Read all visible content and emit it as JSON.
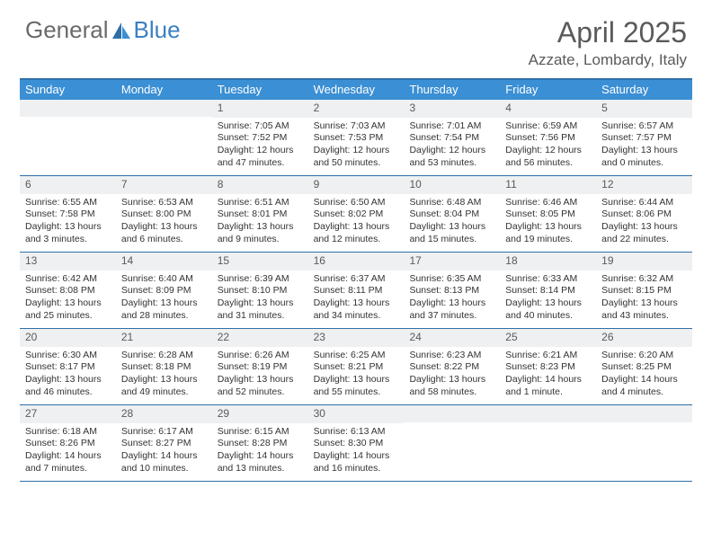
{
  "brand": {
    "part1": "General",
    "part2": "Blue"
  },
  "title": "April 2025",
  "location": "Azzate, Lombardy, Italy",
  "colors": {
    "header_bg": "#3b8fd4",
    "border": "#2f6fa8",
    "daybar_bg": "#eef0f1",
    "text": "#333333",
    "muted": "#5a5a5a",
    "brand_blue": "#3b7fc4"
  },
  "weekdays": [
    "Sunday",
    "Monday",
    "Tuesday",
    "Wednesday",
    "Thursday",
    "Friday",
    "Saturday"
  ],
  "weeks": [
    [
      {
        "n": "",
        "sunrise": "",
        "sunset": "",
        "daylight": ""
      },
      {
        "n": "",
        "sunrise": "",
        "sunset": "",
        "daylight": ""
      },
      {
        "n": "1",
        "sunrise": "Sunrise: 7:05 AM",
        "sunset": "Sunset: 7:52 PM",
        "daylight": "Daylight: 12 hours and 47 minutes."
      },
      {
        "n": "2",
        "sunrise": "Sunrise: 7:03 AM",
        "sunset": "Sunset: 7:53 PM",
        "daylight": "Daylight: 12 hours and 50 minutes."
      },
      {
        "n": "3",
        "sunrise": "Sunrise: 7:01 AM",
        "sunset": "Sunset: 7:54 PM",
        "daylight": "Daylight: 12 hours and 53 minutes."
      },
      {
        "n": "4",
        "sunrise": "Sunrise: 6:59 AM",
        "sunset": "Sunset: 7:56 PM",
        "daylight": "Daylight: 12 hours and 56 minutes."
      },
      {
        "n": "5",
        "sunrise": "Sunrise: 6:57 AM",
        "sunset": "Sunset: 7:57 PM",
        "daylight": "Daylight: 13 hours and 0 minutes."
      }
    ],
    [
      {
        "n": "6",
        "sunrise": "Sunrise: 6:55 AM",
        "sunset": "Sunset: 7:58 PM",
        "daylight": "Daylight: 13 hours and 3 minutes."
      },
      {
        "n": "7",
        "sunrise": "Sunrise: 6:53 AM",
        "sunset": "Sunset: 8:00 PM",
        "daylight": "Daylight: 13 hours and 6 minutes."
      },
      {
        "n": "8",
        "sunrise": "Sunrise: 6:51 AM",
        "sunset": "Sunset: 8:01 PM",
        "daylight": "Daylight: 13 hours and 9 minutes."
      },
      {
        "n": "9",
        "sunrise": "Sunrise: 6:50 AM",
        "sunset": "Sunset: 8:02 PM",
        "daylight": "Daylight: 13 hours and 12 minutes."
      },
      {
        "n": "10",
        "sunrise": "Sunrise: 6:48 AM",
        "sunset": "Sunset: 8:04 PM",
        "daylight": "Daylight: 13 hours and 15 minutes."
      },
      {
        "n": "11",
        "sunrise": "Sunrise: 6:46 AM",
        "sunset": "Sunset: 8:05 PM",
        "daylight": "Daylight: 13 hours and 19 minutes."
      },
      {
        "n": "12",
        "sunrise": "Sunrise: 6:44 AM",
        "sunset": "Sunset: 8:06 PM",
        "daylight": "Daylight: 13 hours and 22 minutes."
      }
    ],
    [
      {
        "n": "13",
        "sunrise": "Sunrise: 6:42 AM",
        "sunset": "Sunset: 8:08 PM",
        "daylight": "Daylight: 13 hours and 25 minutes."
      },
      {
        "n": "14",
        "sunrise": "Sunrise: 6:40 AM",
        "sunset": "Sunset: 8:09 PM",
        "daylight": "Daylight: 13 hours and 28 minutes."
      },
      {
        "n": "15",
        "sunrise": "Sunrise: 6:39 AM",
        "sunset": "Sunset: 8:10 PM",
        "daylight": "Daylight: 13 hours and 31 minutes."
      },
      {
        "n": "16",
        "sunrise": "Sunrise: 6:37 AM",
        "sunset": "Sunset: 8:11 PM",
        "daylight": "Daylight: 13 hours and 34 minutes."
      },
      {
        "n": "17",
        "sunrise": "Sunrise: 6:35 AM",
        "sunset": "Sunset: 8:13 PM",
        "daylight": "Daylight: 13 hours and 37 minutes."
      },
      {
        "n": "18",
        "sunrise": "Sunrise: 6:33 AM",
        "sunset": "Sunset: 8:14 PM",
        "daylight": "Daylight: 13 hours and 40 minutes."
      },
      {
        "n": "19",
        "sunrise": "Sunrise: 6:32 AM",
        "sunset": "Sunset: 8:15 PM",
        "daylight": "Daylight: 13 hours and 43 minutes."
      }
    ],
    [
      {
        "n": "20",
        "sunrise": "Sunrise: 6:30 AM",
        "sunset": "Sunset: 8:17 PM",
        "daylight": "Daylight: 13 hours and 46 minutes."
      },
      {
        "n": "21",
        "sunrise": "Sunrise: 6:28 AM",
        "sunset": "Sunset: 8:18 PM",
        "daylight": "Daylight: 13 hours and 49 minutes."
      },
      {
        "n": "22",
        "sunrise": "Sunrise: 6:26 AM",
        "sunset": "Sunset: 8:19 PM",
        "daylight": "Daylight: 13 hours and 52 minutes."
      },
      {
        "n": "23",
        "sunrise": "Sunrise: 6:25 AM",
        "sunset": "Sunset: 8:21 PM",
        "daylight": "Daylight: 13 hours and 55 minutes."
      },
      {
        "n": "24",
        "sunrise": "Sunrise: 6:23 AM",
        "sunset": "Sunset: 8:22 PM",
        "daylight": "Daylight: 13 hours and 58 minutes."
      },
      {
        "n": "25",
        "sunrise": "Sunrise: 6:21 AM",
        "sunset": "Sunset: 8:23 PM",
        "daylight": "Daylight: 14 hours and 1 minute."
      },
      {
        "n": "26",
        "sunrise": "Sunrise: 6:20 AM",
        "sunset": "Sunset: 8:25 PM",
        "daylight": "Daylight: 14 hours and 4 minutes."
      }
    ],
    [
      {
        "n": "27",
        "sunrise": "Sunrise: 6:18 AM",
        "sunset": "Sunset: 8:26 PM",
        "daylight": "Daylight: 14 hours and 7 minutes."
      },
      {
        "n": "28",
        "sunrise": "Sunrise: 6:17 AM",
        "sunset": "Sunset: 8:27 PM",
        "daylight": "Daylight: 14 hours and 10 minutes."
      },
      {
        "n": "29",
        "sunrise": "Sunrise: 6:15 AM",
        "sunset": "Sunset: 8:28 PM",
        "daylight": "Daylight: 14 hours and 13 minutes."
      },
      {
        "n": "30",
        "sunrise": "Sunrise: 6:13 AM",
        "sunset": "Sunset: 8:30 PM",
        "daylight": "Daylight: 14 hours and 16 minutes."
      },
      {
        "n": "",
        "sunrise": "",
        "sunset": "",
        "daylight": ""
      },
      {
        "n": "",
        "sunrise": "",
        "sunset": "",
        "daylight": ""
      },
      {
        "n": "",
        "sunrise": "",
        "sunset": "",
        "daylight": ""
      }
    ]
  ]
}
